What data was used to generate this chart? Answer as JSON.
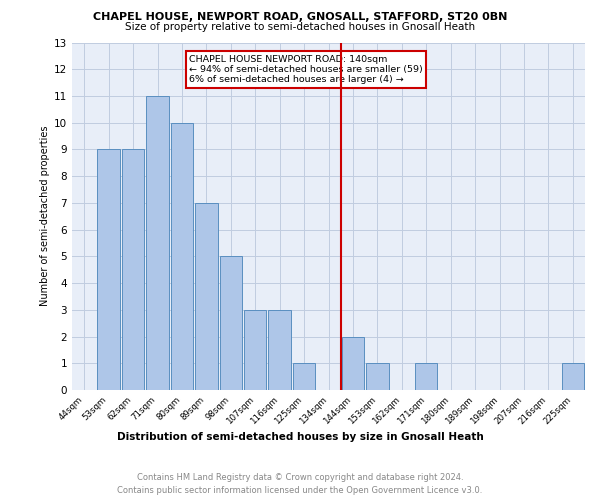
{
  "title": "CHAPEL HOUSE, NEWPORT ROAD, GNOSALL, STAFFORD, ST20 0BN",
  "subtitle": "Size of property relative to semi-detached houses in Gnosall Heath",
  "xlabel_bottom": "Distribution of semi-detached houses by size in Gnosall Heath",
  "ylabel": "Number of semi-detached properties",
  "categories": [
    "44sqm",
    "53sqm",
    "62sqm",
    "71sqm",
    "80sqm",
    "89sqm",
    "98sqm",
    "107sqm",
    "116sqm",
    "125sqm",
    "134sqm",
    "144sqm",
    "153sqm",
    "162sqm",
    "171sqm",
    "180sqm",
    "189sqm",
    "198sqm",
    "207sqm",
    "216sqm",
    "225sqm"
  ],
  "values": [
    0,
    9,
    9,
    11,
    10,
    7,
    5,
    3,
    3,
    1,
    0,
    2,
    1,
    0,
    1,
    0,
    0,
    0,
    0,
    0,
    1
  ],
  "bar_color": "#aec6e8",
  "bar_edge_color": "#5a8fc0",
  "vline_index": 11,
  "vline_color": "#cc0000",
  "annotation_text": "CHAPEL HOUSE NEWPORT ROAD: 140sqm\n← 94% of semi-detached houses are smaller (59)\n6% of semi-detached houses are larger (4) →",
  "annotation_box_color": "#ffffff",
  "annotation_box_edge": "#cc0000",
  "ylim": [
    0,
    13
  ],
  "yticks": [
    0,
    1,
    2,
    3,
    4,
    5,
    6,
    7,
    8,
    9,
    10,
    11,
    12,
    13
  ],
  "footer_line1": "Contains HM Land Registry data © Crown copyright and database right 2024.",
  "footer_line2": "Contains public sector information licensed under the Open Government Licence v3.0.",
  "bg_color": "#e8eef8",
  "plot_bg": "#e8eef8"
}
